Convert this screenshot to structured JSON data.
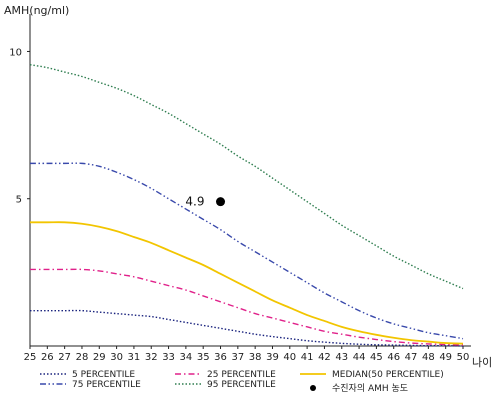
{
  "chart_data": {
    "type": "line",
    "ylabel": "AMH(ng/ml)",
    "xlabel": "나이",
    "xlim": [
      25,
      50
    ],
    "ylim": [
      0,
      11
    ],
    "y_ticks": [
      5,
      10
    ],
    "x_ticks": [
      25,
      26,
      27,
      28,
      29,
      30,
      31,
      32,
      33,
      34,
      35,
      36,
      37,
      38,
      39,
      40,
      41,
      42,
      43,
      44,
      45,
      46,
      47,
      48,
      49,
      50
    ],
    "x": [
      25,
      26,
      27,
      28,
      29,
      30,
      31,
      32,
      33,
      34,
      35,
      36,
      37,
      38,
      39,
      40,
      41,
      42,
      43,
      44,
      45,
      46,
      47,
      48,
      49,
      50
    ],
    "grid": false,
    "series": [
      {
        "name": "5 PERCENTILE",
        "color": "#1a237e",
        "dash": "dotted",
        "values": [
          1.2,
          1.2,
          1.2,
          1.2,
          1.15,
          1.1,
          1.05,
          1.0,
          0.9,
          0.8,
          0.7,
          0.6,
          0.5,
          0.4,
          0.32,
          0.25,
          0.18,
          0.13,
          0.09,
          0.06,
          0.04,
          0.03,
          0.02,
          0.01,
          0.01,
          0.0
        ]
      },
      {
        "name": "25 PERCENTILE",
        "color": "#e0218a",
        "dash": "dash-dot",
        "values": [
          2.6,
          2.6,
          2.6,
          2.6,
          2.55,
          2.45,
          2.35,
          2.2,
          2.05,
          1.9,
          1.7,
          1.5,
          1.3,
          1.1,
          0.95,
          0.8,
          0.65,
          0.5,
          0.4,
          0.3,
          0.22,
          0.15,
          0.1,
          0.07,
          0.05,
          0.03
        ]
      },
      {
        "name": "MEDIAN(50 PERCENTILE)",
        "color": "#f2c500",
        "dash": "solid",
        "values": [
          4.2,
          4.2,
          4.2,
          4.15,
          4.05,
          3.9,
          3.7,
          3.5,
          3.25,
          3.0,
          2.75,
          2.45,
          2.15,
          1.85,
          1.55,
          1.3,
          1.05,
          0.85,
          0.65,
          0.5,
          0.38,
          0.28,
          0.2,
          0.15,
          0.1,
          0.08
        ]
      },
      {
        "name": "75 PERCENTILE",
        "color": "#3949ab",
        "dash": "dash-dot-dot",
        "values": [
          6.2,
          6.2,
          6.2,
          6.2,
          6.1,
          5.9,
          5.65,
          5.35,
          5.0,
          4.65,
          4.3,
          3.95,
          3.55,
          3.2,
          2.85,
          2.5,
          2.15,
          1.8,
          1.5,
          1.2,
          0.95,
          0.75,
          0.6,
          0.45,
          0.35,
          0.25
        ]
      },
      {
        "name": "95 PERCENTILE",
        "color": "#2e7d4f",
        "dash": "dotted",
        "values": [
          9.55,
          9.45,
          9.3,
          9.15,
          8.95,
          8.75,
          8.5,
          8.2,
          7.9,
          7.55,
          7.2,
          6.85,
          6.45,
          6.1,
          5.7,
          5.3,
          4.9,
          4.5,
          4.1,
          3.75,
          3.4,
          3.05,
          2.75,
          2.45,
          2.2,
          1.95
        ]
      }
    ],
    "highlight": {
      "name": "수진자의 AMH 농도",
      "x": 36,
      "y": 4.9,
      "label": "4.9",
      "color": "#000000"
    },
    "legend_position": "bottom"
  }
}
